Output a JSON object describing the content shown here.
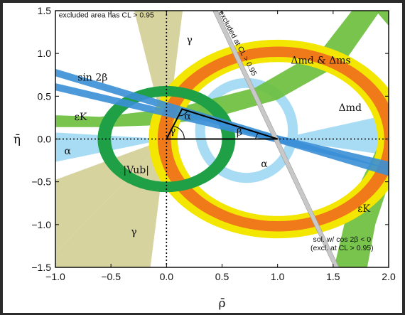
{
  "chart_data": {
    "type": "scatter",
    "title": "",
    "xlabel": "ρ̄",
    "ylabel": "η̄",
    "xlim": [
      -1.0,
      2.0
    ],
    "ylim": [
      -1.5,
      1.5
    ],
    "x_ticks": [
      "−1.0",
      "−0.5",
      "0.0",
      "0.5",
      "1.0",
      "1.5",
      "2.0"
    ],
    "y_ticks": [
      "1.5",
      "1.0",
      "0.5",
      "0.0",
      "−0.5",
      "−1.0",
      "−1.5"
    ],
    "x_tick_values": [
      -1.0,
      -0.5,
      0.0,
      0.5,
      1.0,
      1.5,
      2.0
    ],
    "y_tick_values": [
      1.5,
      1.0,
      0.5,
      0.0,
      -0.5,
      -1.0,
      -1.5
    ],
    "grid": false,
    "apex": {
      "rho": 0.14,
      "eta": 0.35
    },
    "colors": {
      "gamma": "#d5d19a",
      "alpha": "#a8dcf4",
      "sin2beta": "#3a8fd6",
      "epsK": "#6cbf3e",
      "vub": "#1fa046",
      "dmd_outer": "#f3e600",
      "dmd_inner": "#f07a1a",
      "excluded": "#c8c8c8",
      "triangle": "#000000"
    },
    "annotations": {
      "excluded_area": "excluded area has CL > 0.95",
      "excluded_band": "excluded at CL > 0.95",
      "sol_line1": "sol. w/ cos 2β < 0",
      "sol_line2": "(excl. at CL > 0.95)"
    },
    "region_labels": {
      "gamma_top": "γ",
      "gamma_bottom": "γ",
      "sin2beta": "sin 2β",
      "epsK_left": "εK",
      "epsK_right": "εK",
      "alpha_left": "α",
      "alpha_right": "α",
      "dm_both": "Δmd & Δms",
      "dm_d": "Δmd",
      "vub": "|Vub|",
      "tri_alpha": "α",
      "tri_beta": "β",
      "tri_gamma": "γ"
    }
  }
}
